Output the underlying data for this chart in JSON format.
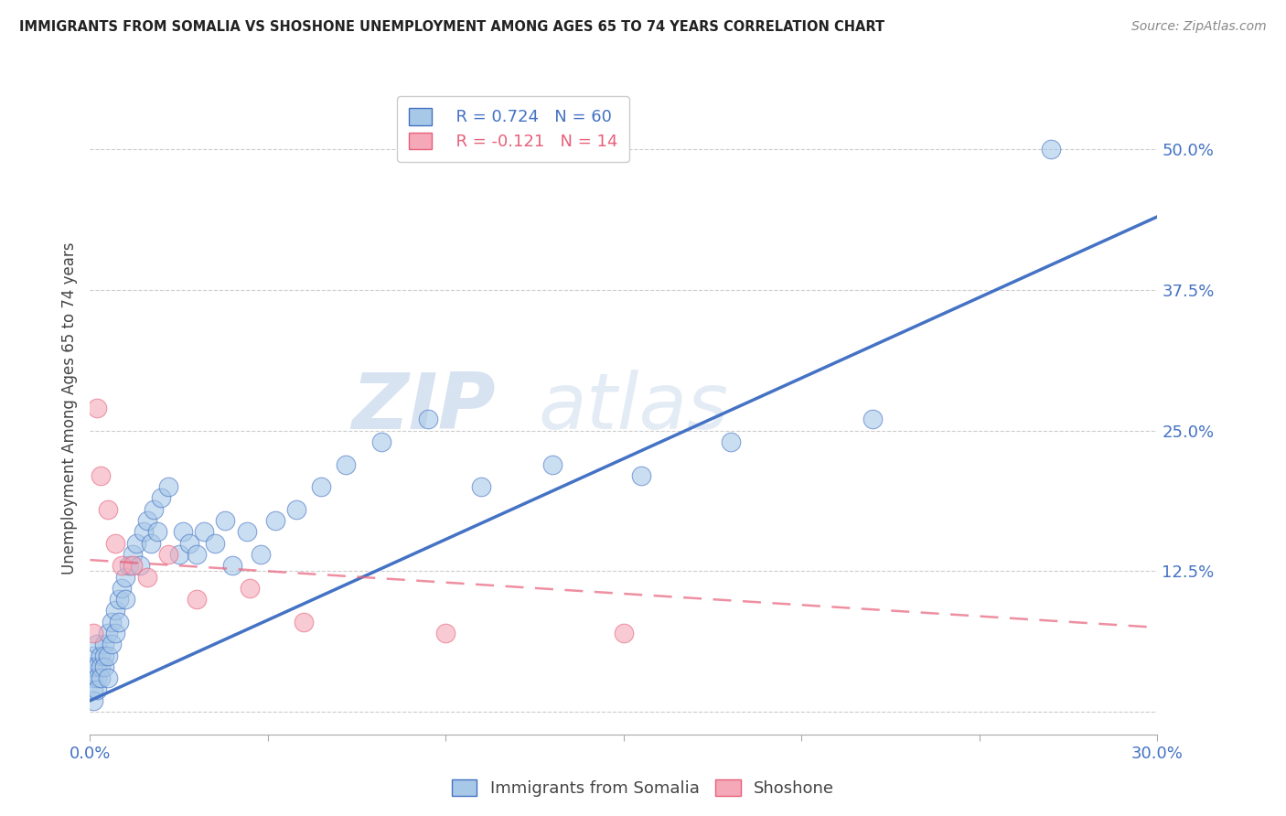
{
  "title": "IMMIGRANTS FROM SOMALIA VS SHOSHONE UNEMPLOYMENT AMONG AGES 65 TO 74 YEARS CORRELATION CHART",
  "source": "Source: ZipAtlas.com",
  "ylabel": "Unemployment Among Ages 65 to 74 years",
  "xlim": [
    0.0,
    0.3
  ],
  "ylim": [
    -0.02,
    0.56
  ],
  "xticks": [
    0.0,
    0.05,
    0.1,
    0.15,
    0.2,
    0.25,
    0.3
  ],
  "xticklabels": [
    "0.0%",
    "",
    "",
    "",
    "",
    "",
    "30.0%"
  ],
  "yticks": [
    0.0,
    0.125,
    0.25,
    0.375,
    0.5
  ],
  "yticklabels": [
    "",
    "12.5%",
    "25.0%",
    "37.5%",
    "50.0%"
  ],
  "somalia_R": "0.724",
  "somalia_N": "60",
  "shoshone_R": "-0.121",
  "shoshone_N": "14",
  "somalia_color": "#A8C8E8",
  "shoshone_color": "#F4A8B8",
  "somalia_line_color": "#4472C4",
  "shoshone_line_color": "#E8607A",
  "watermark_zip": "ZIP",
  "watermark_atlas": "atlas",
  "somalia_scatter_x": [
    0.001,
    0.001,
    0.001,
    0.001,
    0.001,
    0.002,
    0.002,
    0.002,
    0.002,
    0.003,
    0.003,
    0.003,
    0.004,
    0.004,
    0.004,
    0.005,
    0.005,
    0.005,
    0.006,
    0.006,
    0.007,
    0.007,
    0.008,
    0.008,
    0.009,
    0.01,
    0.01,
    0.011,
    0.012,
    0.013,
    0.014,
    0.015,
    0.016,
    0.017,
    0.018,
    0.019,
    0.02,
    0.022,
    0.025,
    0.026,
    0.028,
    0.03,
    0.032,
    0.035,
    0.038,
    0.04,
    0.044,
    0.048,
    0.052,
    0.058,
    0.065,
    0.072,
    0.082,
    0.095,
    0.11,
    0.13,
    0.155,
    0.18,
    0.22,
    0.27
  ],
  "somalia_scatter_y": [
    0.03,
    0.05,
    0.04,
    0.02,
    0.01,
    0.04,
    0.03,
    0.06,
    0.02,
    0.05,
    0.04,
    0.03,
    0.06,
    0.05,
    0.04,
    0.07,
    0.05,
    0.03,
    0.08,
    0.06,
    0.09,
    0.07,
    0.1,
    0.08,
    0.11,
    0.12,
    0.1,
    0.13,
    0.14,
    0.15,
    0.13,
    0.16,
    0.17,
    0.15,
    0.18,
    0.16,
    0.19,
    0.2,
    0.14,
    0.16,
    0.15,
    0.14,
    0.16,
    0.15,
    0.17,
    0.13,
    0.16,
    0.14,
    0.17,
    0.18,
    0.2,
    0.22,
    0.24,
    0.26,
    0.2,
    0.22,
    0.21,
    0.24,
    0.26,
    0.5
  ],
  "shoshone_scatter_x": [
    0.001,
    0.002,
    0.003,
    0.005,
    0.007,
    0.009,
    0.012,
    0.016,
    0.022,
    0.03,
    0.045,
    0.06,
    0.1,
    0.15
  ],
  "shoshone_scatter_y": [
    0.07,
    0.27,
    0.21,
    0.18,
    0.15,
    0.13,
    0.13,
    0.12,
    0.14,
    0.1,
    0.11,
    0.08,
    0.07,
    0.07
  ],
  "somalia_trend_x": [
    0.0,
    0.3
  ],
  "somalia_trend_y": [
    0.01,
    0.44
  ],
  "shoshone_trend_x": [
    0.0,
    0.3
  ],
  "shoshone_trend_y": [
    0.135,
    0.075
  ]
}
